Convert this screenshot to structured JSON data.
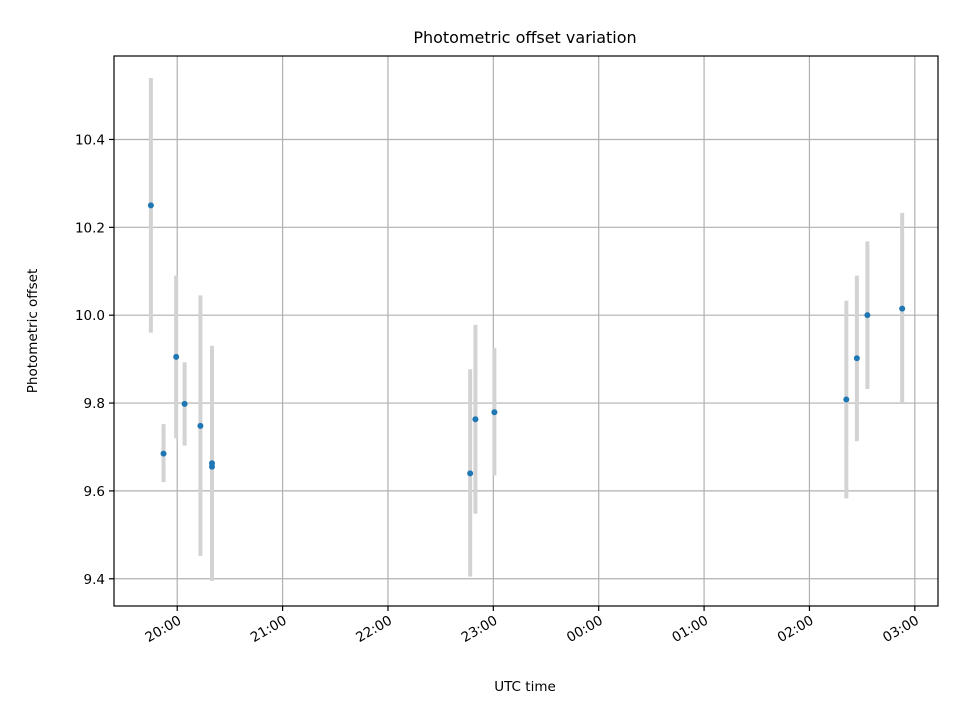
{
  "chart_data": {
    "type": "scatter",
    "title": "Photometric offset variation",
    "xlabel": "UTC time",
    "ylabel": "Photometric offset",
    "x_ticks": [
      "20:00",
      "21:00",
      "22:00",
      "23:00",
      "00:00",
      "01:00",
      "02:00",
      "03:00"
    ],
    "x_tick_hours": [
      20,
      21,
      22,
      23,
      24,
      25,
      26,
      27
    ],
    "y_ticks": [
      9.4,
      9.6,
      9.8,
      10.0,
      10.2,
      10.4
    ],
    "y_tick_labels": [
      "9.4",
      "9.6",
      "9.8",
      "10.0",
      "10.2",
      "10.4"
    ],
    "xlim_hours": [
      19.4,
      27.22
    ],
    "ylim": [
      9.338,
      10.59
    ],
    "grid": true,
    "marker_color": "#1f77b4",
    "errorbar_color": "#d3d3d3",
    "points": [
      {
        "time": "19:45",
        "hour": 19.75,
        "y": 10.25,
        "ylow": 9.96,
        "yhigh": 10.54
      },
      {
        "time": "19:52",
        "hour": 19.87,
        "y": 9.685,
        "ylow": 9.62,
        "yhigh": 9.752
      },
      {
        "time": "19:59",
        "hour": 19.99,
        "y": 9.905,
        "ylow": 9.72,
        "yhigh": 10.09
      },
      {
        "time": "20:04",
        "hour": 20.07,
        "y": 9.798,
        "ylow": 9.703,
        "yhigh": 9.893
      },
      {
        "time": "20:13",
        "hour": 20.22,
        "y": 9.748,
        "ylow": 9.452,
        "yhigh": 10.045
      },
      {
        "time": "20:20",
        "hour": 20.33,
        "y": 9.655,
        "ylow": 9.395,
        "yhigh": 9.93
      },
      {
        "time": "20:20",
        "hour": 20.33,
        "y": 9.663,
        "ylow": 9.395,
        "yhigh": 9.93
      },
      {
        "time": "22:47",
        "hour": 22.78,
        "y": 9.64,
        "ylow": 9.405,
        "yhigh": 9.877
      },
      {
        "time": "22:50",
        "hour": 22.83,
        "y": 9.763,
        "ylow": 9.548,
        "yhigh": 9.978
      },
      {
        "time": "23:01",
        "hour": 23.01,
        "y": 9.779,
        "ylow": 9.635,
        "yhigh": 9.925
      },
      {
        "time": "02:21",
        "hour": 26.35,
        "y": 9.808,
        "ylow": 9.583,
        "yhigh": 10.033
      },
      {
        "time": "02:27",
        "hour": 26.45,
        "y": 9.902,
        "ylow": 9.713,
        "yhigh": 10.09
      },
      {
        "time": "02:33",
        "hour": 26.55,
        "y": 10.0,
        "ylow": 9.832,
        "yhigh": 10.168
      },
      {
        "time": "02:53",
        "hour": 26.88,
        "y": 10.015,
        "ylow": 9.8,
        "yhigh": 10.233
      }
    ]
  }
}
